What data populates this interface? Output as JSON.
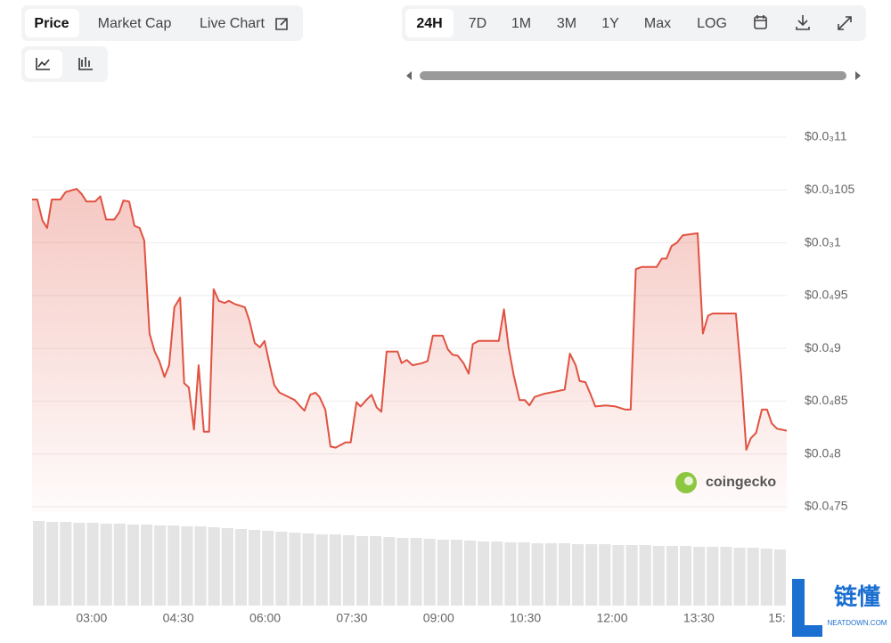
{
  "ui": {
    "tabs": [
      "Price",
      "Market Cap",
      "Live Chart"
    ],
    "ranges": [
      "24H",
      "7D",
      "1M",
      "3M",
      "1Y",
      "Max",
      "LOG"
    ],
    "watermark": "coingecko",
    "logo": {
      "cn": "链懂",
      "en": "NEATDOWN.COM"
    }
  },
  "chart_data": {
    "type": "line",
    "color": "#e15241",
    "x": [
      1.97,
      2.06,
      2.15,
      2.23,
      2.31,
      2.46,
      2.55,
      2.74,
      2.83,
      2.91,
      3.06,
      3.15,
      3.25,
      3.39,
      3.48,
      3.55,
      3.65,
      3.74,
      3.83,
      3.91,
      4.0,
      4.09,
      4.17,
      4.26,
      4.34,
      4.43,
      4.53,
      4.6,
      4.68,
      4.77,
      4.85,
      4.94,
      5.03,
      5.11,
      5.2,
      5.3,
      5.37,
      5.47,
      5.65,
      5.73,
      5.82,
      5.91,
      5.99,
      6.08,
      6.16,
      6.25,
      6.44,
      6.51,
      6.61,
      6.68,
      6.78,
      6.87,
      6.94,
      7.04,
      7.13,
      7.22,
      7.39,
      7.48,
      7.58,
      7.65,
      7.75,
      7.84,
      7.93,
      8.01,
      8.1,
      8.29,
      8.36,
      8.45,
      8.55,
      8.72,
      8.81,
      8.9,
      9.07,
      9.16,
      9.24,
      9.33,
      9.43,
      9.52,
      9.59,
      9.69,
      10.04,
      10.13,
      10.21,
      10.3,
      10.4,
      10.49,
      10.57,
      10.66,
      10.83,
      11.01,
      11.18,
      11.27,
      11.37,
      11.44,
      11.54,
      11.63,
      11.71,
      11.89,
      12.06,
      12.23,
      12.32,
      12.41,
      12.51,
      12.77,
      12.86,
      12.94,
      13.03,
      13.12,
      13.22,
      13.48,
      13.57,
      13.66,
      13.74,
      14.14,
      14.23,
      14.32,
      14.4,
      14.49,
      14.59,
      14.68,
      14.76,
      14.85,
      15.02
    ],
    "values": [
      0.0001041,
      0.0001041,
      0.0001021,
      0.0001014,
      0.0001041,
      0.0001041,
      0.0001048,
      0.0001051,
      0.0001046,
      0.0001039,
      0.0001039,
      0.0001044,
      0.0001022,
      0.0001022,
      0.0001029,
      0.000104,
      0.0001039,
      0.0001016,
      0.0001014,
      0.0001002,
      9.14e-05,
      8.97e-05,
      8.88e-05,
      8.73e-05,
      8.84e-05,
      9.39e-05,
      9.48e-05,
      8.67e-05,
      8.63e-05,
      8.23e-05,
      8.84e-05,
      8.21e-05,
      8.21e-05,
      9.56e-05,
      9.45e-05,
      9.43e-05,
      9.45e-05,
      9.42e-05,
      9.39e-05,
      9.26e-05,
      9.05e-05,
      9.01e-05,
      9.07e-05,
      8.84e-05,
      8.65e-05,
      8.58e-05,
      8.53e-05,
      8.51e-05,
      8.45e-05,
      8.41e-05,
      8.56e-05,
      8.58e-05,
      8.54e-05,
      8.42e-05,
      8.07e-05,
      8.06e-05,
      8.11e-05,
      8.11e-05,
      8.49e-05,
      8.45e-05,
      8.51e-05,
      8.56e-05,
      8.44e-05,
      8.4e-05,
      8.97e-05,
      8.97e-05,
      8.86e-05,
      8.89e-05,
      8.84e-05,
      8.86e-05,
      8.88e-05,
      9.12e-05,
      9.12e-05,
      8.99e-05,
      8.94e-05,
      8.93e-05,
      8.86e-05,
      8.76e-05,
      9.04e-05,
      9.07e-05,
      9.07e-05,
      9.37e-05,
      9.01e-05,
      8.74e-05,
      8.51e-05,
      8.51e-05,
      8.46e-05,
      8.54e-05,
      8.57e-05,
      8.59e-05,
      8.61e-05,
      8.95e-05,
      8.84e-05,
      8.69e-05,
      8.68e-05,
      8.56e-05,
      8.45e-05,
      8.46e-05,
      8.45e-05,
      8.42e-05,
      8.42e-05,
      9.75e-05,
      9.77e-05,
      9.77e-05,
      9.85e-05,
      9.85e-05,
      9.97e-05,
      0.0001,
      0.0001007,
      0.0001009,
      9.14e-05,
      9.31e-05,
      9.33e-05,
      9.33e-05,
      8.76e-05,
      8.04e-05,
      8.15e-05,
      8.2e-05,
      8.42e-05,
      8.42e-05,
      8.29e-05,
      8.24e-05,
      8.22e-05
    ],
    "xlim": [
      1.97,
      15.02
    ],
    "xticks": [
      {
        "value": 3,
        "label": "03:00"
      },
      {
        "value": 4.5,
        "label": "04:30"
      },
      {
        "value": 6,
        "label": "06:00"
      },
      {
        "value": 7.5,
        "label": "07:30"
      },
      {
        "value": 9,
        "label": "09:00"
      },
      {
        "value": 10.5,
        "label": "10:30"
      },
      {
        "value": 12,
        "label": "12:00"
      },
      {
        "value": 13.5,
        "label": "13:30"
      },
      {
        "value": 15,
        "label": "15:"
      }
    ],
    "ylim": [
      7.5e-05,
      0.00011
    ],
    "yticks": [
      {
        "value": 0.00011,
        "label": "$0.0₃11"
      },
      {
        "value": 0.000105,
        "label": "$0.0₃105"
      },
      {
        "value": 0.0001,
        "label": "$0.0₃1"
      },
      {
        "value": 9.5e-05,
        "label": "$0.0₄95"
      },
      {
        "value": 9e-05,
        "label": "$0.0₄9"
      },
      {
        "value": 8.5e-05,
        "label": "$0.0₄85"
      },
      {
        "value": 8e-05,
        "label": "$0.0₄8"
      },
      {
        "value": 7.5e-05,
        "label": "$0.0₄75"
      }
    ],
    "grid": true,
    "volume": {
      "color": "#e4e4e4",
      "values": [
        95,
        94,
        94,
        93,
        93,
        92,
        92,
        91,
        91,
        90,
        90,
        89,
        89,
        88,
        87,
        86,
        85,
        84,
        83,
        82,
        81,
        80,
        80,
        79,
        78,
        78,
        77,
        76,
        76,
        75,
        74,
        74,
        73,
        72,
        72,
        71,
        71,
        70,
        70,
        70,
        69,
        69,
        69,
        68,
        68,
        68,
        67,
        67,
        67,
        66,
        66,
        66,
        65,
        65,
        64,
        63
      ]
    }
  }
}
